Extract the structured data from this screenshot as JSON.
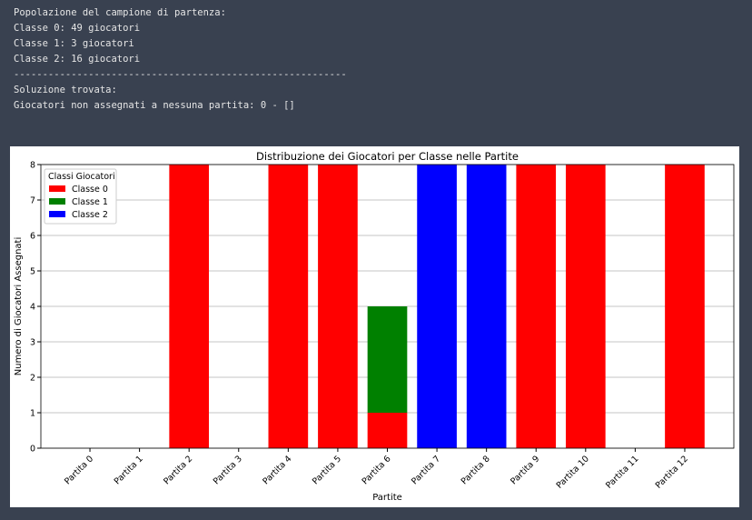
{
  "console": {
    "lines": [
      "Popolazione del campione di partenza:",
      "Classe 0: 49 giocatori",
      "Classe 1: 3 giocatori",
      "Classe 2: 16 giocatori",
      "----------------------------------------------------------",
      "Soluzione trovata:",
      "Giocatori non assegnati a nessuna partita: 0 - []"
    ]
  },
  "chart_data": {
    "type": "stacked_bar",
    "title": "Distribuzione dei Giocatori per Classe nelle Partite",
    "x_label": "Partite",
    "y_label": "Numero di Giocatori Assegnati",
    "categories": [
      "Partita 0",
      "Partita 1",
      "Partita 2",
      "Partita 3",
      "Partita 4",
      "Partita 5",
      "Partita 6",
      "Partita 7",
      "Partita 8",
      "Partita 9",
      "Partita 10",
      "Partita 11",
      "Partita 12"
    ],
    "series": [
      {
        "name": "Classe 0",
        "color": "#ff0000",
        "values": [
          0,
          0,
          8,
          0,
          8,
          8,
          1,
          0,
          0,
          8,
          8,
          0,
          8
        ]
      },
      {
        "name": "Classe 1",
        "color": "#008000",
        "values": [
          0,
          0,
          0,
          0,
          0,
          0,
          3,
          0,
          0,
          0,
          0,
          0,
          0
        ]
      },
      {
        "name": "Classe 2",
        "color": "#0000ff",
        "values": [
          0,
          0,
          0,
          0,
          0,
          0,
          0,
          8,
          8,
          0,
          0,
          0,
          0
        ]
      }
    ],
    "ylim": [
      0,
      8
    ],
    "yticks": [
      0,
      1,
      2,
      3,
      4,
      5,
      6,
      7,
      8
    ],
    "grid": true,
    "legend_title": "Classi Giocatori",
    "legend_position": "upper-left"
  }
}
